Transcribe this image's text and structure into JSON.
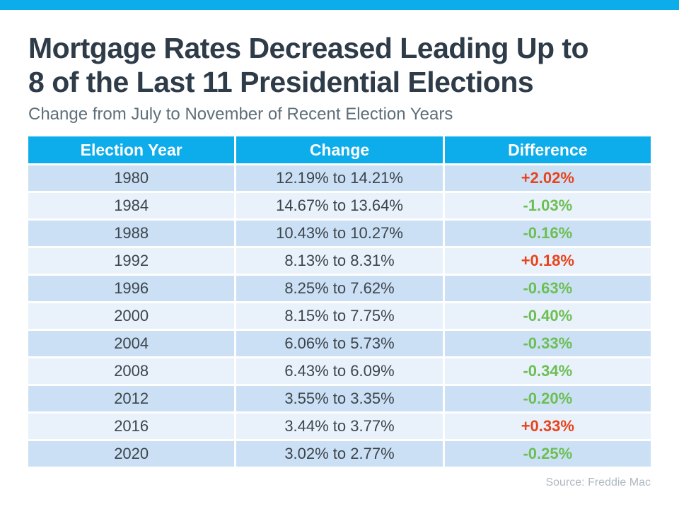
{
  "colors": {
    "accent": "#0daceb",
    "row_dark": "#cce0f5",
    "row_light": "#e9f1fa",
    "title_text": "#2e3b48",
    "subtitle_text": "#5e6f79",
    "cell_text": "#3c454c",
    "diff_up": "#e8431c",
    "diff_down": "#6cbf53",
    "source_text": "#aeb9c2"
  },
  "header": {
    "title_line1": "Mortgage Rates Decreased Leading Up to",
    "title_line2": "8 of the Last 11 Presidential Elections",
    "subtitle": "Change from July to November of Recent Election Years"
  },
  "table": {
    "headers": [
      "Election Year",
      "Change",
      "Difference"
    ],
    "rows": [
      {
        "year": "1980",
        "change": "12.19% to 14.21%",
        "difference": "+2.02%",
        "direction": "up"
      },
      {
        "year": "1984",
        "change": "14.67% to 13.64%",
        "difference": "-1.03%",
        "direction": "down"
      },
      {
        "year": "1988",
        "change": "10.43% to 10.27%",
        "difference": "-0.16%",
        "direction": "down"
      },
      {
        "year": "1992",
        "change": "8.13% to 8.31%",
        "difference": "+0.18%",
        "direction": "up"
      },
      {
        "year": "1996",
        "change": "8.25% to 7.62%",
        "difference": "-0.63%",
        "direction": "down"
      },
      {
        "year": "2000",
        "change": "8.15% to 7.75%",
        "difference": "-0.40%",
        "direction": "down"
      },
      {
        "year": "2004",
        "change": "6.06% to 5.73%",
        "difference": "-0.33%",
        "direction": "down"
      },
      {
        "year": "2008",
        "change": "6.43% to 6.09%",
        "difference": "-0.34%",
        "direction": "down"
      },
      {
        "year": "2012",
        "change": "3.55% to 3.35%",
        "difference": "-0.20%",
        "direction": "down"
      },
      {
        "year": "2016",
        "change": "3.44% to 3.77%",
        "difference": "+0.33%",
        "direction": "up"
      },
      {
        "year": "2020",
        "change": "3.02% to 2.77%",
        "difference": "-0.25%",
        "direction": "down"
      }
    ]
  },
  "footer": {
    "source": "Source: Freddie Mac"
  },
  "chart_data": {
    "type": "table",
    "title": "Mortgage Rates Decreased Leading Up to 8 of the Last 11 Presidential Elections",
    "subtitle": "Change from July to November of Recent Election Years",
    "columns": [
      "Election Year",
      "Change",
      "Difference"
    ],
    "years": [
      1980,
      1984,
      1988,
      1992,
      1996,
      2000,
      2004,
      2008,
      2012,
      2016,
      2020
    ],
    "july_rates_pct": [
      12.19,
      14.67,
      10.43,
      8.13,
      8.25,
      8.15,
      6.06,
      6.43,
      3.55,
      3.44,
      3.02
    ],
    "november_rates_pct": [
      14.21,
      13.64,
      10.27,
      8.31,
      7.62,
      7.75,
      5.73,
      6.09,
      3.35,
      3.77,
      2.77
    ],
    "difference_pct": [
      2.02,
      -1.03,
      -0.16,
      0.18,
      -0.63,
      -0.4,
      -0.33,
      -0.34,
      -0.2,
      0.33,
      -0.25
    ],
    "source": "Freddie Mac"
  }
}
